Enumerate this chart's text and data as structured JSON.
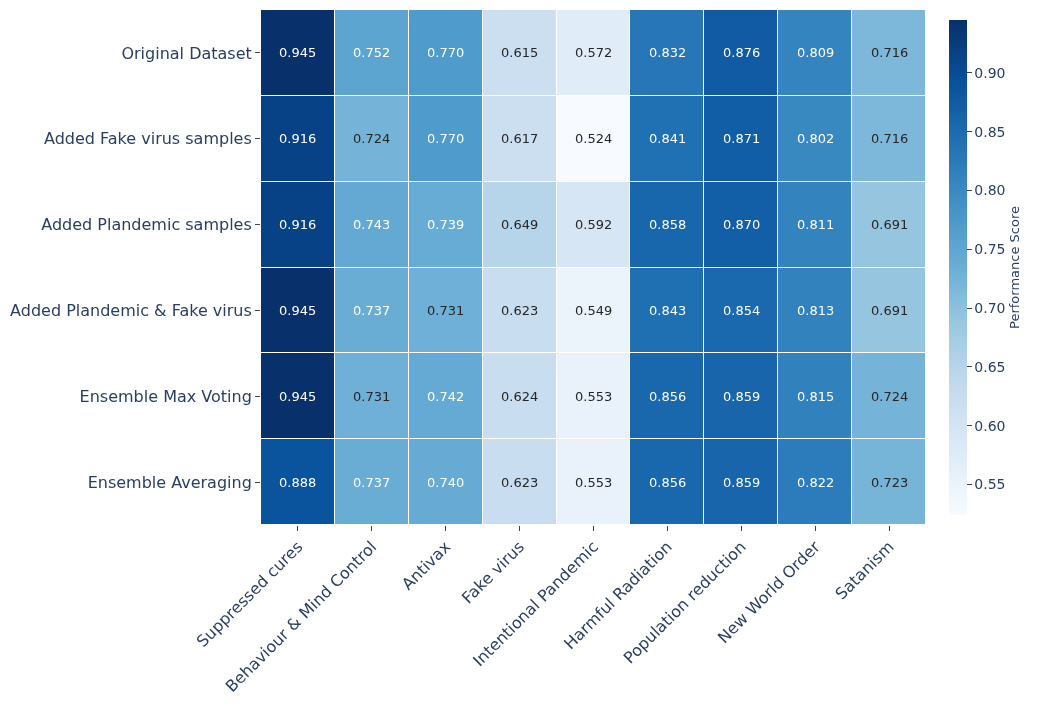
{
  "chart_data": {
    "type": "heatmap",
    "categories": [
      "Suppressed cures",
      "Behaviour & Mind Control",
      "Antivax",
      "Fake virus",
      "Intentional Pandemic",
      "Harmful Radiation",
      "Population reduction",
      "New World Order",
      "Satanism"
    ],
    "y_categories": [
      "Original Dataset",
      "Added Fake virus samples",
      "Added Plandemic samples",
      "Added Plandemic & Fake virus",
      "Ensemble Max Voting",
      "Ensemble Averaging"
    ],
    "cells": [
      [
        0.945,
        0.752,
        0.77,
        0.615,
        0.572,
        0.832,
        0.876,
        0.809,
        0.716
      ],
      [
        0.916,
        0.724,
        0.77,
        0.617,
        0.524,
        0.841,
        0.871,
        0.802,
        0.716
      ],
      [
        0.916,
        0.743,
        0.739,
        0.649,
        0.592,
        0.858,
        0.87,
        0.811,
        0.691
      ],
      [
        0.945,
        0.737,
        0.731,
        0.623,
        0.549,
        0.843,
        0.854,
        0.813,
        0.691
      ],
      [
        0.945,
        0.731,
        0.742,
        0.624,
        0.553,
        0.856,
        0.859,
        0.815,
        0.724
      ],
      [
        0.888,
        0.737,
        0.74,
        0.623,
        0.553,
        0.856,
        0.859,
        0.822,
        0.723
      ]
    ],
    "cell_labels": [
      [
        "0.945",
        "0.752",
        "0.770",
        "0.615",
        "0.572",
        "0.832",
        "0.876",
        "0.809",
        "0.716"
      ],
      [
        "0.916",
        "0.724",
        "0.770",
        "0.617",
        "0.524",
        "0.841",
        "0.871",
        "0.802",
        "0.716"
      ],
      [
        "0.916",
        "0.743",
        "0.739",
        "0.649",
        "0.592",
        "0.858",
        "0.870",
        "0.811",
        "0.691"
      ],
      [
        "0.945",
        "0.737",
        "0.731",
        "0.623",
        "0.549",
        "0.843",
        "0.854",
        "0.813",
        "0.691"
      ],
      [
        "0.945",
        "0.731",
        "0.742",
        "0.624",
        "0.553",
        "0.856",
        "0.859",
        "0.815",
        "0.724"
      ],
      [
        "0.888",
        "0.737",
        "0.740",
        "0.623",
        "0.553",
        "0.856",
        "0.859",
        "0.822",
        "0.723"
      ]
    ],
    "clabel": "Performance Score",
    "clim": [
      0.524,
      0.945
    ],
    "cticks": [
      0.55,
      {
        "value": 0.6,
        "label": "0.60"
      },
      0.65,
      {
        "value": 0.7,
        "label": "0.70"
      },
      0.75,
      {
        "value": 0.8,
        "label": "0.80"
      },
      0.85,
      {
        "value": 0.9,
        "label": "0.90"
      }
    ],
    "data_labels": true
  }
}
